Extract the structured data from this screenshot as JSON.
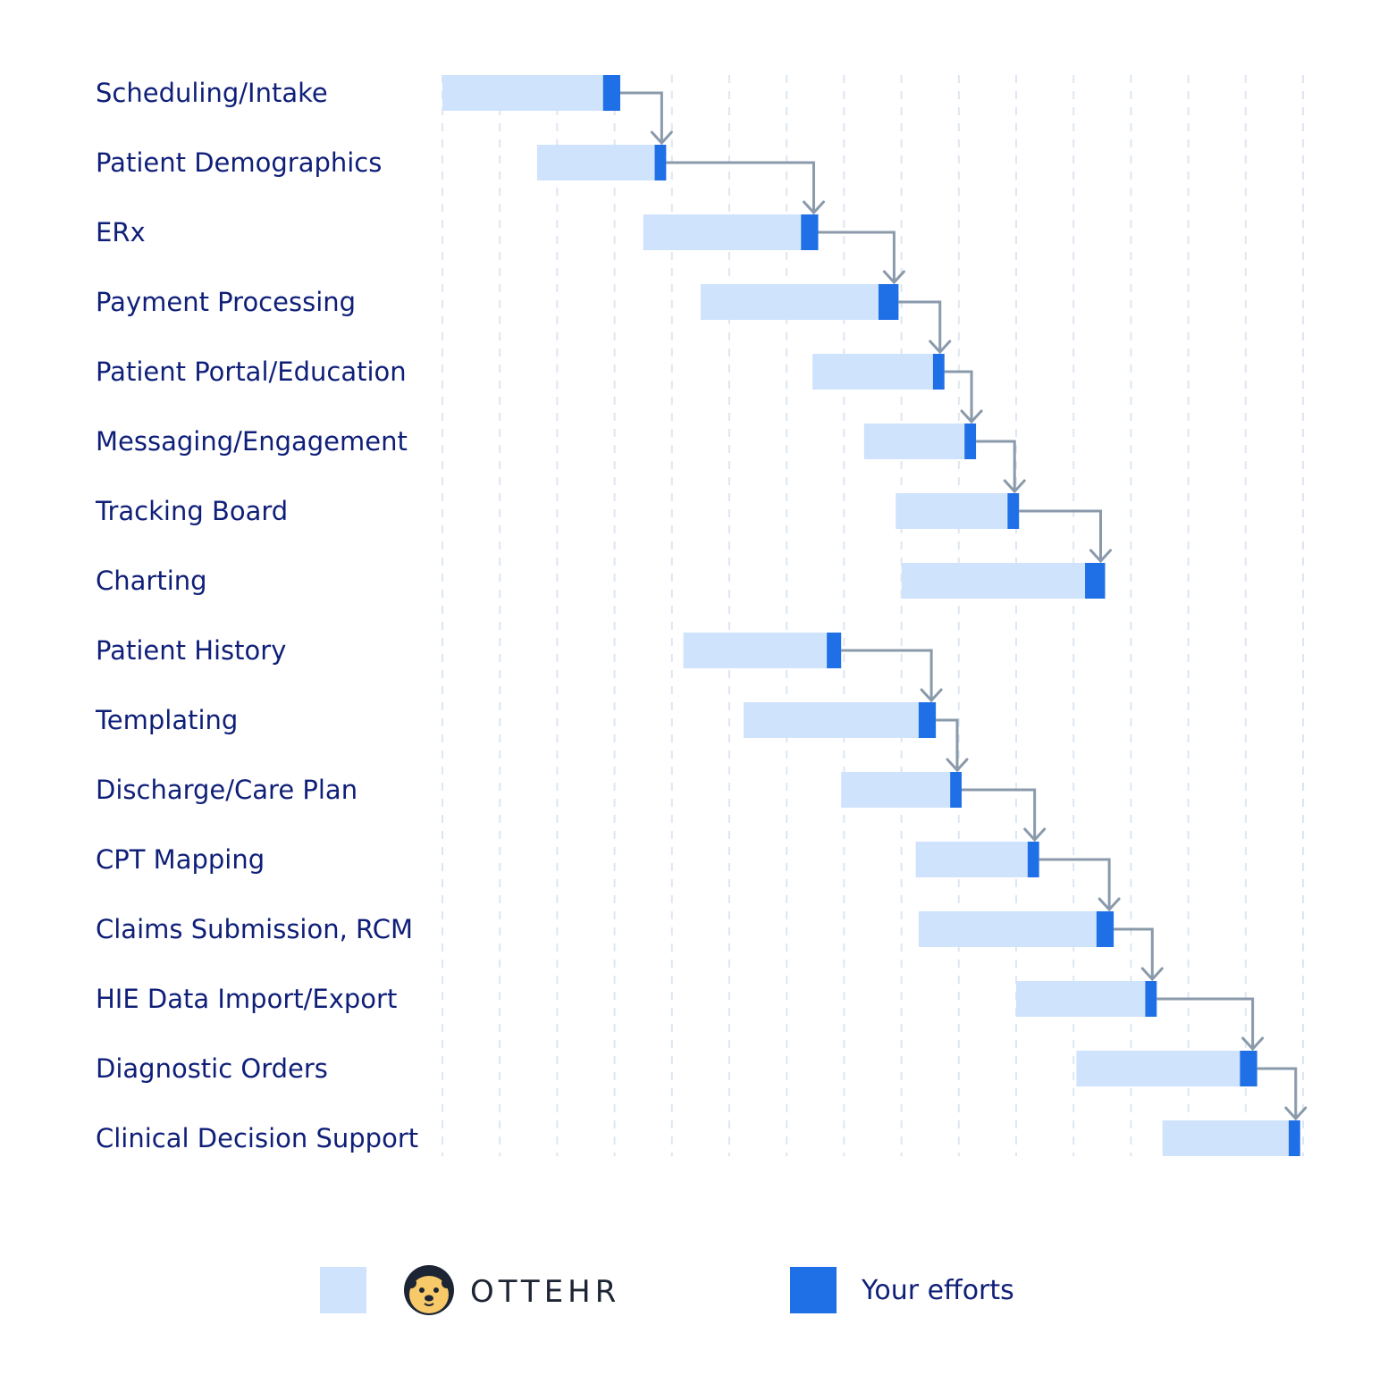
{
  "colors": {
    "ottehr_bar": "#cfe3fd",
    "effort_bar": "#1f6fe6",
    "connector": "#8a9aab",
    "grid": "#dde6f2",
    "label": "#0f1f78",
    "brand_text": "#1d2433",
    "logo_face": "#f7c968",
    "logo_hood": "#1d2433"
  },
  "legend": {
    "ottehr_logo_icon": "otter-logo-icon",
    "ottehr_label": "OTTEHR",
    "effort_label": "Your efforts"
  },
  "chart_data": {
    "type": "gantt",
    "title": "",
    "xlabel": "",
    "ylabel": "",
    "x_range": [
      0,
      15
    ],
    "grid": "vertical dashed",
    "legend_position": "bottom",
    "tasks": [
      {
        "name": "Scheduling/Intake",
        "start": 0.0,
        "ottehr_end": 2.8,
        "end": 3.1
      },
      {
        "name": "Patient Demographics",
        "start": 1.65,
        "ottehr_end": 3.7,
        "end": 3.9
      },
      {
        "name": "ERx",
        "start": 3.5,
        "ottehr_end": 6.25,
        "end": 6.55
      },
      {
        "name": "Payment Processing",
        "start": 4.5,
        "ottehr_end": 7.6,
        "end": 7.95
      },
      {
        "name": "Patient Portal/Education",
        "start": 6.45,
        "ottehr_end": 8.55,
        "end": 8.75
      },
      {
        "name": "Messaging/Engagement",
        "start": 7.35,
        "ottehr_end": 9.1,
        "end": 9.3
      },
      {
        "name": "Tracking Board",
        "start": 7.9,
        "ottehr_end": 9.85,
        "end": 10.05
      },
      {
        "name": "Charting",
        "start": 8.0,
        "ottehr_end": 11.2,
        "end": 11.55
      },
      {
        "name": "Patient History",
        "start": 4.2,
        "ottehr_end": 6.7,
        "end": 6.95
      },
      {
        "name": "Templating",
        "start": 5.25,
        "ottehr_end": 8.3,
        "end": 8.6
      },
      {
        "name": "Discharge/Care Plan",
        "start": 6.95,
        "ottehr_end": 8.85,
        "end": 9.05
      },
      {
        "name": "CPT Mapping",
        "start": 8.25,
        "ottehr_end": 10.2,
        "end": 10.4
      },
      {
        "name": "Claims Submission, RCM",
        "start": 8.3,
        "ottehr_end": 11.4,
        "end": 11.7
      },
      {
        "name": "HIE Data Import/Export",
        "start": 10.0,
        "ottehr_end": 12.25,
        "end": 12.45
      },
      {
        "name": "Diagnostic Orders",
        "start": 11.05,
        "ottehr_end": 13.9,
        "end": 14.2
      },
      {
        "name": "Clinical Decision Support",
        "start": 12.55,
        "ottehr_end": 14.75,
        "end": 14.95
      }
    ],
    "dependencies": [
      [
        0,
        1
      ],
      [
        1,
        2
      ],
      [
        2,
        3
      ],
      [
        3,
        4
      ],
      [
        4,
        5
      ],
      [
        5,
        6
      ],
      [
        6,
        7
      ],
      [
        8,
        9
      ],
      [
        9,
        10
      ],
      [
        10,
        11
      ],
      [
        11,
        12
      ],
      [
        12,
        13
      ],
      [
        13,
        14
      ],
      [
        14,
        15
      ]
    ]
  }
}
